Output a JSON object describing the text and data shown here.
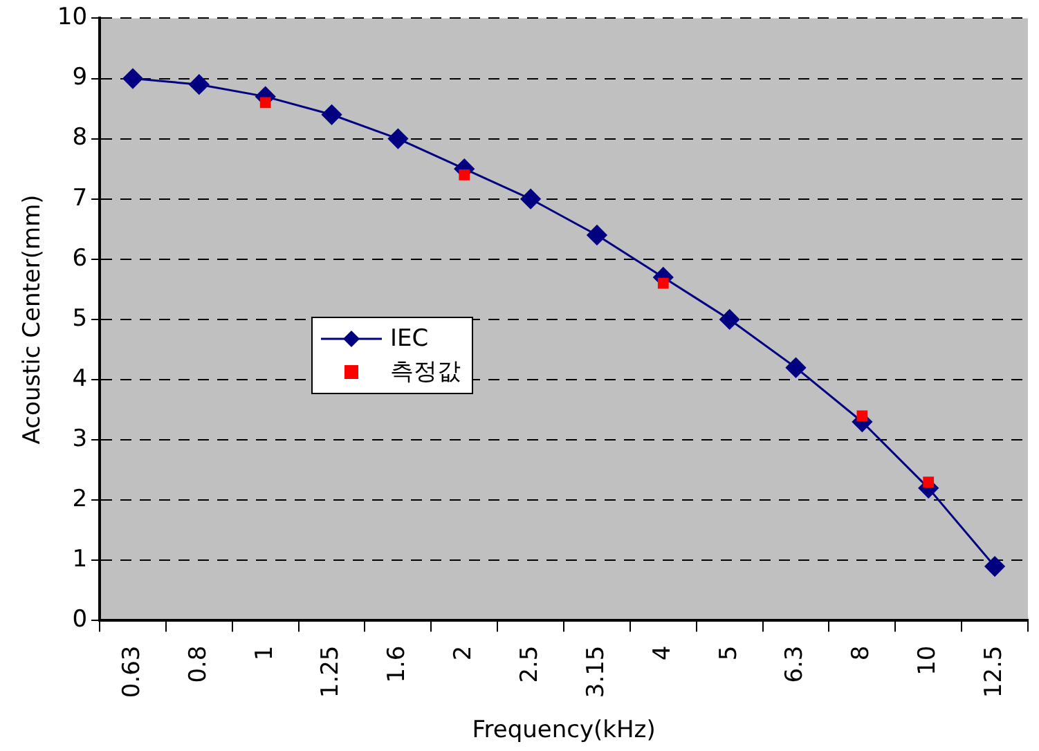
{
  "chart_data": {
    "type": "line",
    "xlabel": "Frequency(kHz)",
    "ylabel": "Acoustic Center(mm)",
    "categories": [
      "0.63",
      "0.8",
      "1",
      "1.25",
      "1.6",
      "2",
      "2.5",
      "3.15",
      "4",
      "5",
      "6.3",
      "8",
      "10",
      "12.5"
    ],
    "series": [
      {
        "name": "IEC",
        "type": "line",
        "color": "#000080",
        "marker": "diamond",
        "values": [
          9.0,
          8.9,
          8.7,
          8.4,
          8.0,
          7.5,
          7.0,
          6.4,
          5.7,
          5.0,
          4.2,
          3.3,
          2.2,
          0.9
        ]
      },
      {
        "name": "측정값",
        "type": "scatter",
        "color": "#ff0000",
        "marker": "square",
        "values": [
          null,
          null,
          8.6,
          null,
          null,
          7.4,
          null,
          null,
          5.6,
          null,
          null,
          3.4,
          2.3,
          null
        ]
      }
    ],
    "ylim": [
      0,
      10
    ],
    "yticks": [
      0,
      1,
      2,
      3,
      4,
      5,
      6,
      7,
      8,
      9,
      10
    ],
    "grid": "y",
    "legend": "center left",
    "line_style": "solid"
  }
}
